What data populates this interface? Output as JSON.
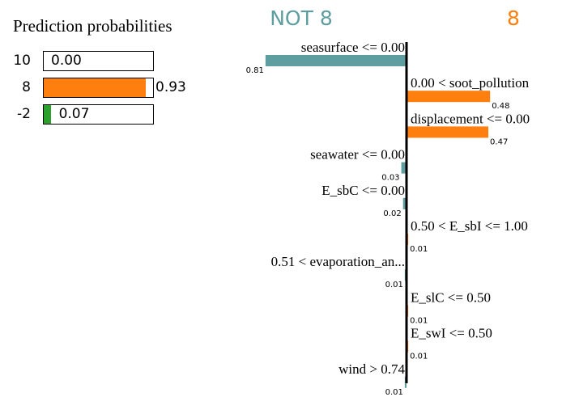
{
  "prediction": {
    "title": "Prediction probabilities",
    "classes": [
      {
        "label": "10",
        "value": 0.0,
        "value_text": "0.00",
        "color": "#1f77b4"
      },
      {
        "label": "8",
        "value": 0.93,
        "value_text": "0.93",
        "color": "#ff7f0e"
      },
      {
        "label": "-2",
        "value": 0.07,
        "value_text": "0.07",
        "color": "#2ca02c"
      }
    ]
  },
  "chart_data": {
    "type": "bar",
    "orientation": "horizontal",
    "negative_class": "NOT 8",
    "positive_class": "8",
    "negative_color": "#5f9ea0",
    "positive_color": "#ff7f0e",
    "features": [
      {
        "label": "seasurface <= 0.00",
        "weight": -0.81,
        "weight_text": "0.81"
      },
      {
        "label": "0.00 < soot_pollution",
        "weight": 0.48,
        "weight_text": "0.48"
      },
      {
        "label": "displacement <= 0.00",
        "weight": 0.47,
        "weight_text": "0.47"
      },
      {
        "label": "seawater <= 0.00",
        "weight": -0.03,
        "weight_text": "0.03"
      },
      {
        "label": "E_sbC <= 0.00",
        "weight": -0.02,
        "weight_text": "0.02"
      },
      {
        "label": "0.50 < E_sbI <= 1.00",
        "weight": 0.01,
        "weight_text": "0.01"
      },
      {
        "label": "0.51 < evaporation_an...",
        "weight": -0.01,
        "weight_text": "0.01"
      },
      {
        "label": "E_slC <= 0.50",
        "weight": 0.01,
        "weight_text": "0.01"
      },
      {
        "label": "E_swI <= 0.50",
        "weight": 0.01,
        "weight_text": "0.01"
      },
      {
        "label": "wind > 0.74",
        "weight": -0.01,
        "weight_text": "0.01"
      }
    ]
  }
}
